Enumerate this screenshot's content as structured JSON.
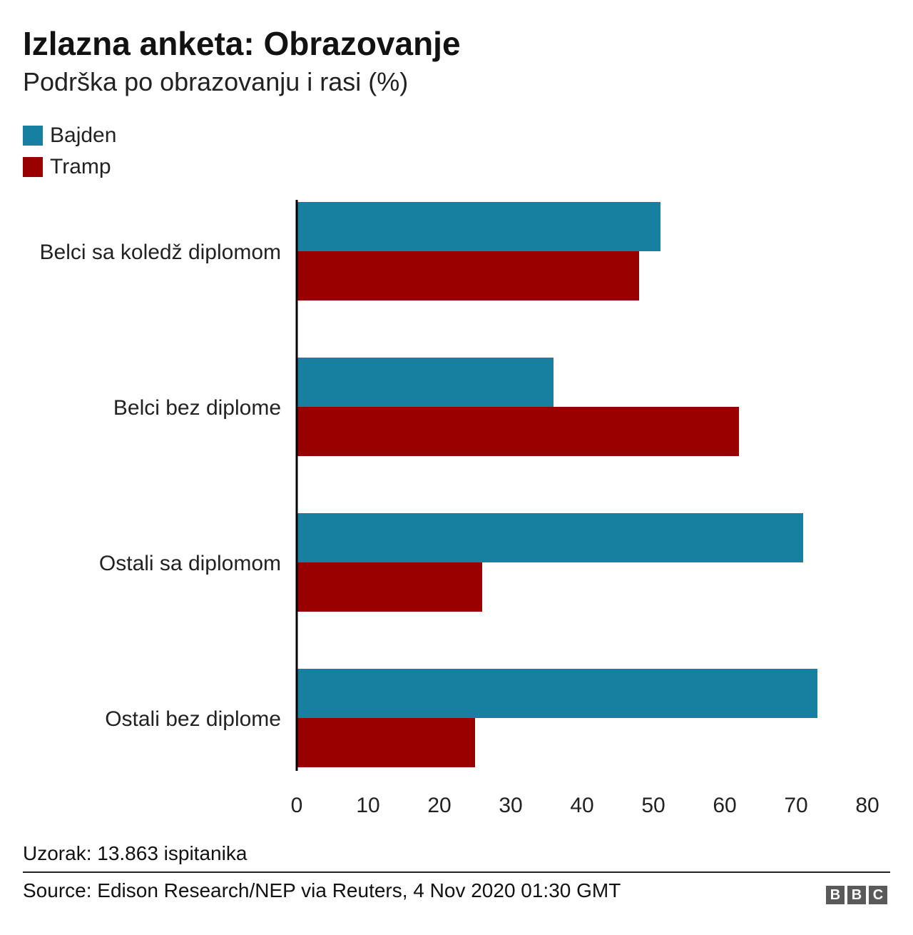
{
  "header": {
    "title": "Izlazna anketa: Obrazovanje",
    "subtitle": "Podrška po obrazovanju i rasi (%)"
  },
  "legend": [
    {
      "label": "Bajden",
      "color": "#1780a1"
    },
    {
      "label": "Tramp",
      "color": "#990000"
    }
  ],
  "chart_data": {
    "type": "bar",
    "orientation": "horizontal",
    "title": "Izlazna anketa: Obrazovanje",
    "subtitle": "Podrška po obrazovanju i rasi (%)",
    "categories": [
      "Belci sa koledž diplomom",
      "Belci bez diplome",
      "Ostali sa diplomom",
      "Ostali bez diplome"
    ],
    "series": [
      {
        "name": "Bajden",
        "color": "#1780a1",
        "values": [
          51,
          36,
          71,
          73
        ]
      },
      {
        "name": "Tramp",
        "color": "#990000",
        "values": [
          48,
          62,
          26,
          25
        ]
      }
    ],
    "xlim": [
      0,
      80
    ],
    "xticks": [
      "0",
      "10",
      "20",
      "30",
      "40",
      "50",
      "60",
      "70",
      "80"
    ],
    "xlabel": "",
    "ylabel": "",
    "grid": false,
    "legend_position": "top-left"
  },
  "footer": {
    "note": "Uzorak: 13.863 ispitanika",
    "source": "Source: Edison Research/NEP via Reuters, 4 Nov 2020 01:30 GMT",
    "logo_letters": [
      "B",
      "B",
      "C"
    ]
  }
}
